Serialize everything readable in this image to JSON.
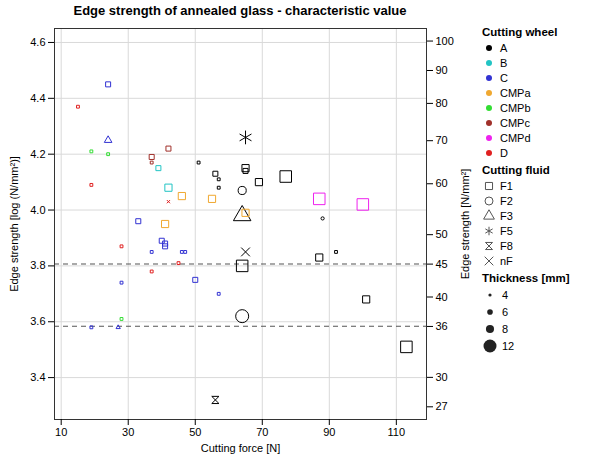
{
  "chart_data": {
    "type": "scatter",
    "title": "Edge strength of annealed glass - characteristic value",
    "x_label": "Cutting force [N]",
    "y_label": "Edge strength [log (N/mm²)]",
    "y2_label": "Edge strength [N/mm²]",
    "xlim": [
      8,
      119
    ],
    "xticks": [
      10,
      30,
      50,
      70,
      90,
      110
    ],
    "ylim": [
      3.25,
      4.65
    ],
    "yticks": [
      3.4,
      3.6,
      3.8,
      {
        "value": 4,
        "label": "4.0"
      },
      4.2,
      4.4,
      4.6
    ],
    "y2lim": [
      25.8,
      104.6
    ],
    "y2ticks": [
      27,
      30,
      36,
      40,
      45,
      50,
      60,
      70,
      80,
      90,
      100
    ],
    "grid": true,
    "reference_lines": [
      3.807,
      3.584
    ],
    "legend_title": "Cutting wheel",
    "series": [
      {
        "name": "A",
        "color": "#000000",
        "x": [
          51,
          56,
          57,
          57,
          64,
          65,
          65,
          69,
          77,
          64,
          64,
          64,
          65,
          65,
          56,
          87,
          88,
          92,
          101,
          113
        ],
        "values": [
          4.17,
          4.13,
          4.11,
          4.08,
          4.07,
          4.15,
          4.14,
          4.1,
          4.12,
          3.8,
          3.62,
          3.98,
          4.26,
          3.85,
          3.32,
          3.83,
          3.97,
          3.85,
          3.68,
          3.51
        ],
        "fluid": [
          "F1",
          "F1",
          "F1",
          "F1",
          "F2",
          "F1",
          "F1",
          "F1",
          "F1",
          "F1",
          "F2",
          "F3",
          "F5",
          "nF",
          "F8",
          "F1",
          "F2",
          "F1",
          "F1",
          "F1"
        ],
        "thickness": [
          4,
          6,
          4,
          4,
          8,
          8,
          6,
          8,
          12,
          12,
          12,
          12,
          12,
          8,
          8,
          8,
          4,
          4,
          8,
          12
        ]
      },
      {
        "name": "B",
        "color": "#22c4c4",
        "x": [
          42,
          39
        ],
        "values": [
          4.08,
          4.15
        ],
        "fluid": [
          "F1",
          "F1"
        ],
        "thickness": [
          8,
          6
        ]
      },
      {
        "name": "C",
        "color": "#3232d2",
        "x": [
          24,
          24,
          19,
          28,
          33,
          37,
          40,
          41,
          41,
          46,
          47,
          50,
          57,
          27
        ],
        "values": [
          4.45,
          4.25,
          3.58,
          3.74,
          3.96,
          3.85,
          3.89,
          3.88,
          3.87,
          3.85,
          3.85,
          3.75,
          3.7,
          3.58
        ],
        "fluid": [
          "F1",
          "F3",
          "F1",
          "F1",
          "F1",
          "F1",
          "F1",
          "F1",
          "F1",
          "F1",
          "F1",
          "F1",
          "F1",
          "F3"
        ],
        "thickness": [
          6,
          6,
          4,
          4,
          6,
          4,
          6,
          6,
          6,
          4,
          4,
          6,
          4,
          4
        ]
      },
      {
        "name": "CMPa",
        "color": "#f0a830",
        "x": [
          41,
          46,
          55,
          65
        ],
        "values": [
          3.95,
          4.05,
          4.04,
          3.99
        ],
        "fluid": [
          "F1",
          "F1",
          "F1",
          "F1"
        ],
        "thickness": [
          8,
          8,
          8,
          8
        ]
      },
      {
        "name": "CMPb",
        "color": "#33dd33",
        "x": [
          19,
          24,
          28
        ],
        "values": [
          4.21,
          4.2,
          3.61
        ],
        "fluid": [
          "F1",
          "F1",
          "F1"
        ],
        "thickness": [
          4,
          4,
          4
        ]
      },
      {
        "name": "CMPc",
        "color": "#a0302a",
        "x": [
          37,
          37,
          42
        ],
        "values": [
          4.19,
          4.17,
          4.22
        ],
        "fluid": [
          "F1",
          "F1",
          "F1"
        ],
        "thickness": [
          6,
          4,
          6
        ]
      },
      {
        "name": "CMPd",
        "color": "#ee22ee",
        "x": [
          87,
          100
        ],
        "values": [
          4.04,
          4.02
        ],
        "fluid": [
          "F1",
          "F1"
        ],
        "thickness": [
          12,
          12
        ]
      },
      {
        "name": "D",
        "color": "#e02020",
        "x": [
          15,
          19,
          28,
          37,
          45,
          42
        ],
        "values": [
          4.37,
          4.09,
          3.87,
          3.78,
          3.81,
          4.03
        ],
        "fluid": [
          "F1",
          "F1",
          "F1",
          "F1",
          "F1",
          "nF"
        ],
        "thickness": [
          4,
          4,
          4,
          4,
          4,
          4
        ]
      }
    ],
    "fluid_legend": {
      "title": "Cutting fluid",
      "items": [
        {
          "name": "F1",
          "marker": "square"
        },
        {
          "name": "F2",
          "marker": "circle"
        },
        {
          "name": "F3",
          "marker": "triangle"
        },
        {
          "name": "F5",
          "marker": "asterisk"
        },
        {
          "name": "F8",
          "marker": "hourglass"
        },
        {
          "name": "nF",
          "marker": "times"
        }
      ]
    },
    "thickness_legend": {
      "title": "Thickness [mm]",
      "values": [
        4,
        6,
        8,
        12
      ]
    }
  }
}
